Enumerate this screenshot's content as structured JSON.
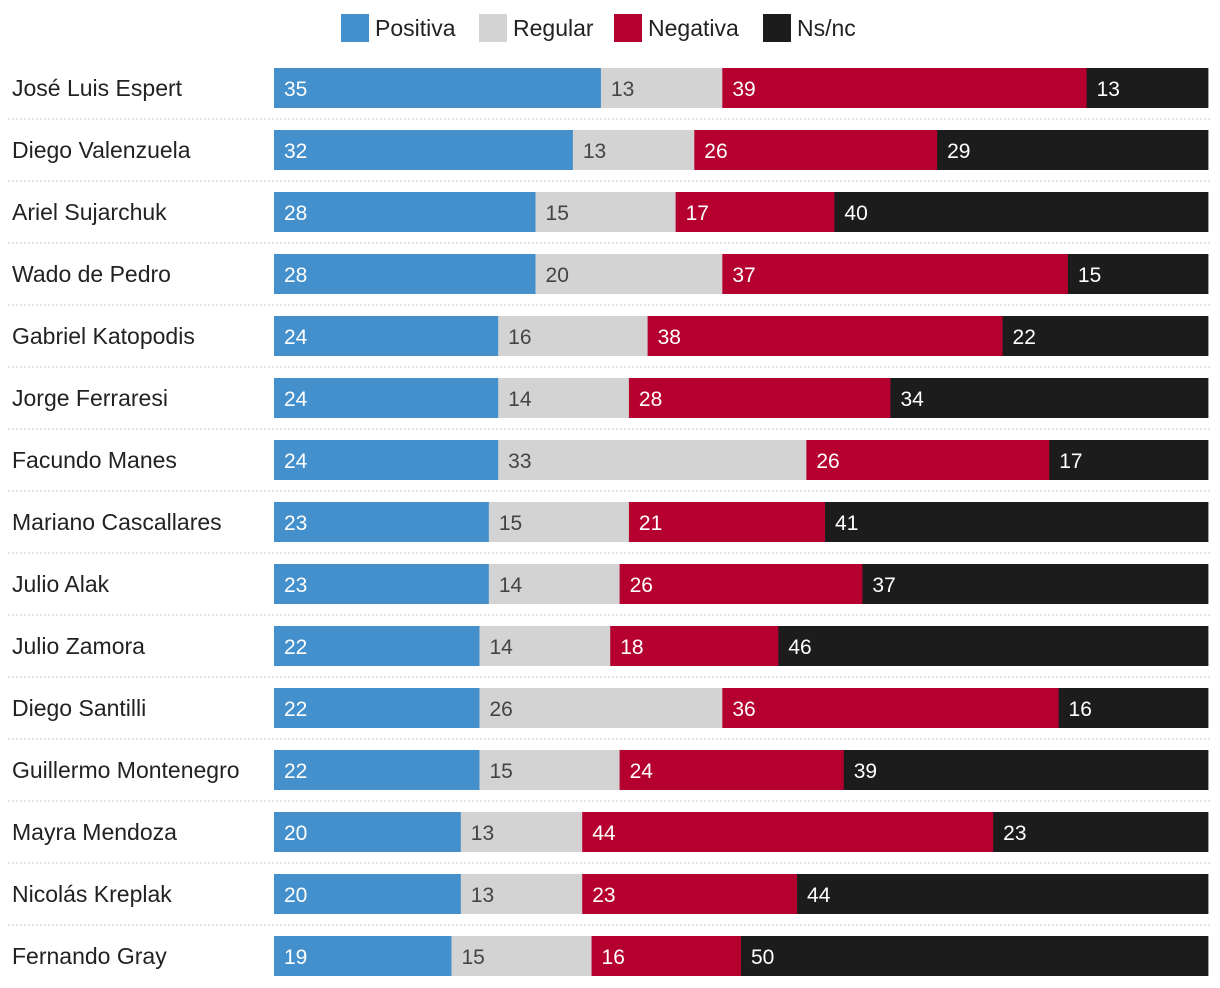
{
  "colors": {
    "positiva": "#4390cc",
    "regular": "#d3d3d3",
    "negativa": "#b5002f",
    "nsnc": "#1c1c1c",
    "separator": "#c8c8c8"
  },
  "chart_data": {
    "type": "bar",
    "orientation": "horizontal",
    "stacked": true,
    "title": "",
    "xlabel": "",
    "ylabel": "",
    "xlim": [
      0,
      100
    ],
    "legend_position": "top-center",
    "categories": [
      "José Luis Espert",
      "Diego Valenzuela",
      "Ariel Sujarchuk",
      "Wado de Pedro",
      "Gabriel Katopodis",
      "Jorge Ferraresi",
      "Facundo Manes",
      "Mariano Cascallares",
      "Julio Alak",
      "Julio Zamora",
      "Diego Santilli",
      "Guillermo Montenegro",
      "Mayra Mendoza",
      "Nicolás Kreplak",
      "Fernando Gray"
    ],
    "series": [
      {
        "name": "Positiva",
        "color_key": "positiva",
        "values": [
          35,
          32,
          28,
          28,
          24,
          24,
          24,
          23,
          23,
          22,
          22,
          22,
          20,
          20,
          19
        ]
      },
      {
        "name": "Regular",
        "color_key": "regular",
        "values": [
          13,
          13,
          15,
          20,
          16,
          14,
          33,
          15,
          14,
          14,
          26,
          15,
          13,
          13,
          15
        ]
      },
      {
        "name": "Negativa",
        "color_key": "negativa",
        "values": [
          39,
          26,
          17,
          37,
          38,
          28,
          26,
          21,
          26,
          18,
          36,
          24,
          44,
          23,
          16
        ]
      },
      {
        "name": "Ns/nc",
        "color_key": "nsnc",
        "values": [
          13,
          29,
          40,
          15,
          22,
          34,
          17,
          41,
          37,
          46,
          16,
          39,
          23,
          44,
          50
        ]
      }
    ]
  }
}
